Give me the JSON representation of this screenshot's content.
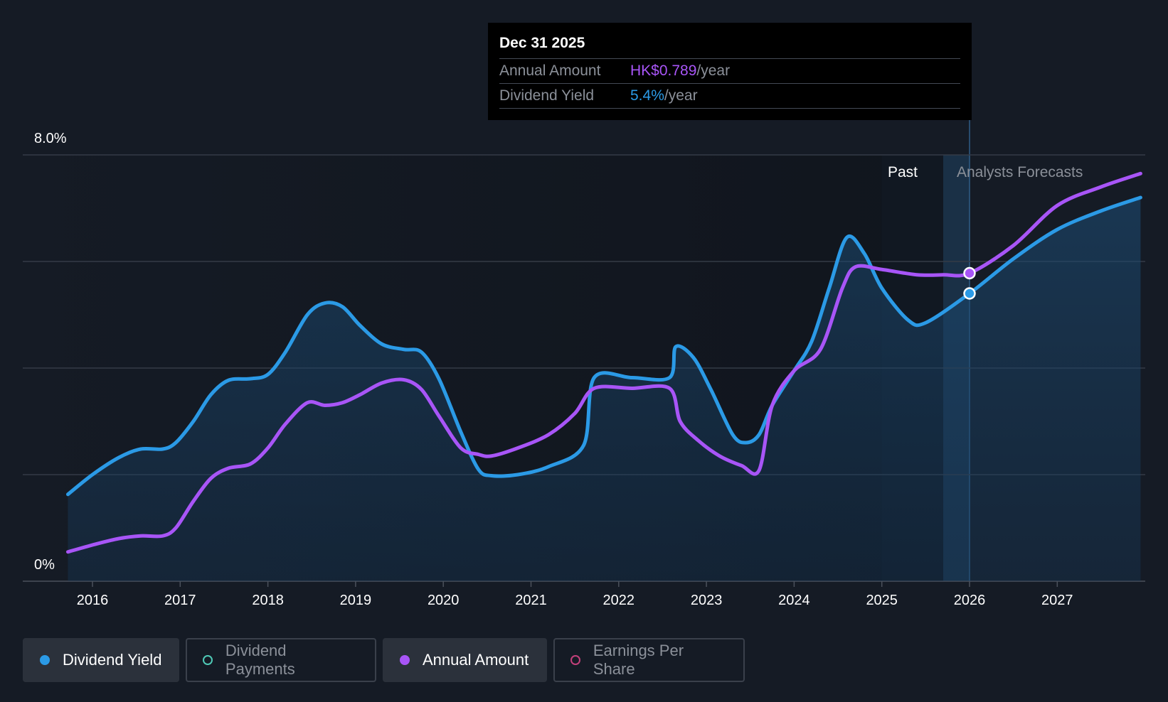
{
  "tooltip": {
    "date": "Dec 31 2025",
    "rows": [
      {
        "label": "Annual Amount",
        "value": "HK$0.789",
        "unit": "/year"
      },
      {
        "label": "Dividend Yield",
        "value": "5.4%",
        "unit": "/year"
      }
    ]
  },
  "legend": [
    {
      "label": "Dividend Yield",
      "active": true,
      "color": "#2b9ae6"
    },
    {
      "label": "Dividend Payments",
      "active": false,
      "color": "#4fc9b6"
    },
    {
      "label": "Annual Amount",
      "active": true,
      "color": "#a855f7"
    },
    {
      "label": "Earnings Per Share",
      "active": false,
      "color": "#c2407a"
    }
  ],
  "chart_data": {
    "type": "line",
    "y_axis_labels": [
      "8.0%",
      "0%"
    ],
    "ylim": [
      0,
      8
    ],
    "xlim": [
      2015.25,
      2027.95
    ],
    "x_ticks": [
      2016,
      2017,
      2018,
      2019,
      2020,
      2021,
      2022,
      2023,
      2024,
      2025,
      2026,
      2027
    ],
    "region_labels": {
      "past": "Past",
      "forecast": "Analysts Forecasts"
    },
    "forecast_start_x": 2025.0,
    "highlight_band_x": [
      2025.7,
      2026.0
    ],
    "cursor_x": 2026.0,
    "grid": true,
    "colors": {
      "dividend_yield": "#2b9ae6",
      "annual_amount": "#a855f7"
    },
    "series": [
      {
        "name": "Dividend Yield",
        "key": "dividend_yield",
        "area": true,
        "points": [
          [
            2015.72,
            1.63
          ],
          [
            2016.0,
            2.0
          ],
          [
            2016.3,
            2.32
          ],
          [
            2016.55,
            2.48
          ],
          [
            2016.8,
            2.48
          ],
          [
            2016.95,
            2.6
          ],
          [
            2017.15,
            3.0
          ],
          [
            2017.35,
            3.5
          ],
          [
            2017.55,
            3.77
          ],
          [
            2017.8,
            3.8
          ],
          [
            2018.0,
            3.88
          ],
          [
            2018.2,
            4.3
          ],
          [
            2018.45,
            5.0
          ],
          [
            2018.65,
            5.22
          ],
          [
            2018.85,
            5.15
          ],
          [
            2019.05,
            4.8
          ],
          [
            2019.3,
            4.45
          ],
          [
            2019.55,
            4.35
          ],
          [
            2019.75,
            4.3
          ],
          [
            2019.95,
            3.8
          ],
          [
            2020.2,
            2.8
          ],
          [
            2020.4,
            2.1
          ],
          [
            2020.55,
            1.98
          ],
          [
            2020.85,
            2.0
          ],
          [
            2021.2,
            2.15
          ],
          [
            2021.6,
            2.55
          ],
          [
            2021.72,
            3.82
          ],
          [
            2022.15,
            3.82
          ],
          [
            2022.58,
            3.82
          ],
          [
            2022.65,
            4.4
          ],
          [
            2022.85,
            4.2
          ],
          [
            2023.05,
            3.6
          ],
          [
            2023.3,
            2.75
          ],
          [
            2023.45,
            2.6
          ],
          [
            2023.6,
            2.75
          ],
          [
            2023.75,
            3.3
          ],
          [
            2024.0,
            3.95
          ],
          [
            2024.2,
            4.5
          ],
          [
            2024.4,
            5.5
          ],
          [
            2024.6,
            6.45
          ],
          [
            2024.8,
            6.15
          ],
          [
            2025.0,
            5.5
          ],
          [
            2025.3,
            4.9
          ],
          [
            2025.5,
            4.85
          ],
          [
            2026.0,
            5.4
          ],
          [
            2026.5,
            6.05
          ],
          [
            2027.0,
            6.6
          ],
          [
            2027.5,
            6.95
          ],
          [
            2027.95,
            7.2
          ]
        ]
      },
      {
        "name": "Annual Amount",
        "key": "annual_amount",
        "area": false,
        "points": [
          [
            2015.72,
            0.55
          ],
          [
            2016.0,
            0.68
          ],
          [
            2016.3,
            0.8
          ],
          [
            2016.55,
            0.85
          ],
          [
            2016.8,
            0.85
          ],
          [
            2016.95,
            1.0
          ],
          [
            2017.15,
            1.5
          ],
          [
            2017.35,
            1.93
          ],
          [
            2017.55,
            2.12
          ],
          [
            2017.8,
            2.2
          ],
          [
            2018.0,
            2.5
          ],
          [
            2018.2,
            2.95
          ],
          [
            2018.45,
            3.35
          ],
          [
            2018.65,
            3.3
          ],
          [
            2018.85,
            3.35
          ],
          [
            2019.05,
            3.5
          ],
          [
            2019.3,
            3.72
          ],
          [
            2019.55,
            3.78
          ],
          [
            2019.75,
            3.6
          ],
          [
            2019.95,
            3.1
          ],
          [
            2020.2,
            2.5
          ],
          [
            2020.4,
            2.38
          ],
          [
            2020.55,
            2.35
          ],
          [
            2020.85,
            2.5
          ],
          [
            2021.2,
            2.75
          ],
          [
            2021.5,
            3.15
          ],
          [
            2021.72,
            3.62
          ],
          [
            2022.15,
            3.62
          ],
          [
            2022.58,
            3.62
          ],
          [
            2022.7,
            3.0
          ],
          [
            2022.9,
            2.65
          ],
          [
            2023.15,
            2.35
          ],
          [
            2023.4,
            2.17
          ],
          [
            2023.6,
            2.08
          ],
          [
            2023.75,
            3.3
          ],
          [
            2024.0,
            3.95
          ],
          [
            2024.3,
            4.35
          ],
          [
            2024.55,
            5.5
          ],
          [
            2024.7,
            5.9
          ],
          [
            2025.0,
            5.85
          ],
          [
            2025.4,
            5.75
          ],
          [
            2025.7,
            5.75
          ],
          [
            2026.0,
            5.78
          ],
          [
            2026.5,
            6.3
          ],
          [
            2027.0,
            7.05
          ],
          [
            2027.5,
            7.4
          ],
          [
            2027.95,
            7.65
          ]
        ]
      }
    ],
    "markers": [
      {
        "series": "annual_amount",
        "x": 2026.0,
        "y": 5.78
      },
      {
        "series": "dividend_yield",
        "x": 2026.0,
        "y": 5.4
      }
    ]
  }
}
